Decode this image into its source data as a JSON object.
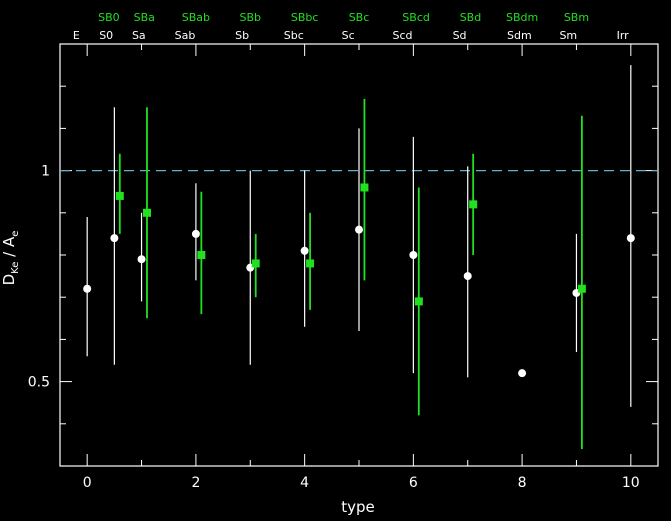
{
  "chart_data": {
    "type": "scatter",
    "title": "",
    "xlabel": "type",
    "ylabel": {
      "main": "D",
      "sub1": "Ke",
      "sep": " / A",
      "sub2": "e"
    },
    "xlim": [
      -0.5,
      10.5
    ],
    "ylim": [
      0.3,
      1.3
    ],
    "x_ticks": [
      0,
      2,
      4,
      6,
      8,
      10
    ],
    "x_tick_labels": [
      "0",
      "2",
      "4",
      "6",
      "8",
      "10"
    ],
    "y_ticks": [
      0.5,
      1
    ],
    "y_tick_labels": [
      "0.5",
      "1"
    ],
    "reference_line": {
      "y": 1,
      "style": "dashed",
      "color": "#5fb3c9"
    },
    "top_labels_white": [
      {
        "x": -0.2,
        "label": "E"
      },
      {
        "x": 0.35,
        "label": "S0"
      },
      {
        "x": 0.95,
        "label": "Sa"
      },
      {
        "x": 1.8,
        "label": "Sab"
      },
      {
        "x": 2.85,
        "label": "Sb"
      },
      {
        "x": 3.8,
        "label": "Sbc"
      },
      {
        "x": 4.8,
        "label": "Sc"
      },
      {
        "x": 5.8,
        "label": "Scd"
      },
      {
        "x": 6.85,
        "label": "Sd"
      },
      {
        "x": 7.95,
        "label": "Sdm"
      },
      {
        "x": 8.85,
        "label": "Sm"
      },
      {
        "x": 9.85,
        "label": "Irr"
      }
    ],
    "top_labels_green": [
      {
        "x": 0.4,
        "label": "SB0"
      },
      {
        "x": 1.05,
        "label": "SBa"
      },
      {
        "x": 2.0,
        "label": "SBab"
      },
      {
        "x": 3.0,
        "label": "SBb"
      },
      {
        "x": 4.0,
        "label": "SBbc"
      },
      {
        "x": 5.0,
        "label": "SBc"
      },
      {
        "x": 6.05,
        "label": "SBcd"
      },
      {
        "x": 7.05,
        "label": "SBd"
      },
      {
        "x": 8.0,
        "label": "SBdm"
      },
      {
        "x": 9.0,
        "label": "SBm"
      }
    ],
    "series": [
      {
        "color": "#ffffff",
        "marker": "circle",
        "points": [
          {
            "x": 0,
            "y": 0.72,
            "lo": 0.56,
            "hi": 0.89
          },
          {
            "x": 0.5,
            "y": 0.84,
            "lo": 0.54,
            "hi": 1.15
          },
          {
            "x": 1,
            "y": 0.79,
            "lo": 0.69,
            "hi": 0.9
          },
          {
            "x": 2,
            "y": 0.85,
            "lo": 0.74,
            "hi": 0.97
          },
          {
            "x": 3,
            "y": 0.77,
            "lo": 0.54,
            "hi": 1.0
          },
          {
            "x": 4,
            "y": 0.81,
            "lo": 0.63,
            "hi": 1.0
          },
          {
            "x": 5,
            "y": 0.86,
            "lo": 0.62,
            "hi": 1.1
          },
          {
            "x": 6,
            "y": 0.8,
            "lo": 0.52,
            "hi": 1.08
          },
          {
            "x": 7,
            "y": 0.75,
            "lo": 0.51,
            "hi": 1.01
          },
          {
            "x": 8,
            "y": 0.52,
            "lo": 0.52,
            "hi": 0.52
          },
          {
            "x": 9,
            "y": 0.71,
            "lo": 0.57,
            "hi": 0.85
          },
          {
            "x": 10,
            "y": 0.84,
            "lo": 0.44,
            "hi": 1.25
          }
        ]
      },
      {
        "color": "#20e020",
        "marker": "square",
        "points": [
          {
            "x": 0.6,
            "y": 0.94,
            "lo": 0.85,
            "hi": 1.04
          },
          {
            "x": 1.1,
            "y": 0.9,
            "lo": 0.65,
            "hi": 1.15
          },
          {
            "x": 2.1,
            "y": 0.8,
            "lo": 0.66,
            "hi": 0.95
          },
          {
            "x": 3.1,
            "y": 0.78,
            "lo": 0.7,
            "hi": 0.85
          },
          {
            "x": 4.1,
            "y": 0.78,
            "lo": 0.67,
            "hi": 0.9
          },
          {
            "x": 5.1,
            "y": 0.96,
            "lo": 0.74,
            "hi": 1.17
          },
          {
            "x": 6.1,
            "y": 0.69,
            "lo": 0.42,
            "hi": 0.96
          },
          {
            "x": 7.1,
            "y": 0.92,
            "lo": 0.8,
            "hi": 1.04
          },
          {
            "x": 9.1,
            "y": 0.72,
            "lo": 0.34,
            "hi": 1.13
          }
        ]
      }
    ]
  }
}
